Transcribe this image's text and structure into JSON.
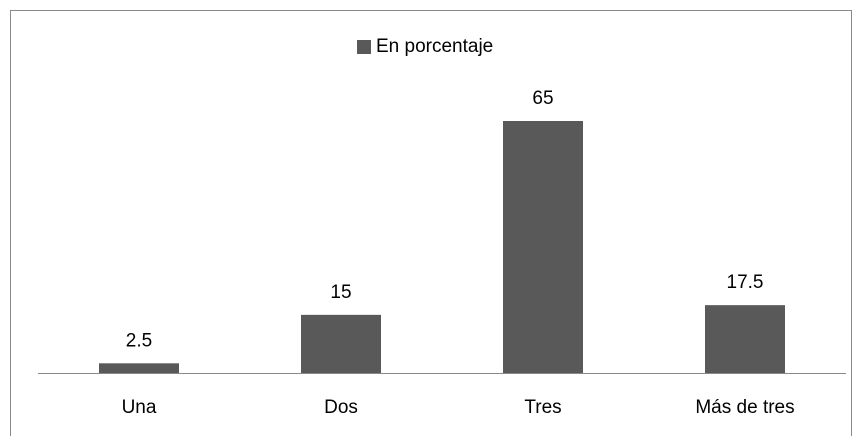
{
  "chart_data": {
    "type": "bar",
    "categories": [
      "Una",
      "Dos",
      "Tres",
      "Más de tres"
    ],
    "series": [
      {
        "name": "En porcentaje",
        "color": "#595959",
        "values": [
          2.5,
          15,
          65,
          17.5
        ]
      }
    ],
    "legend": "top"
  }
}
